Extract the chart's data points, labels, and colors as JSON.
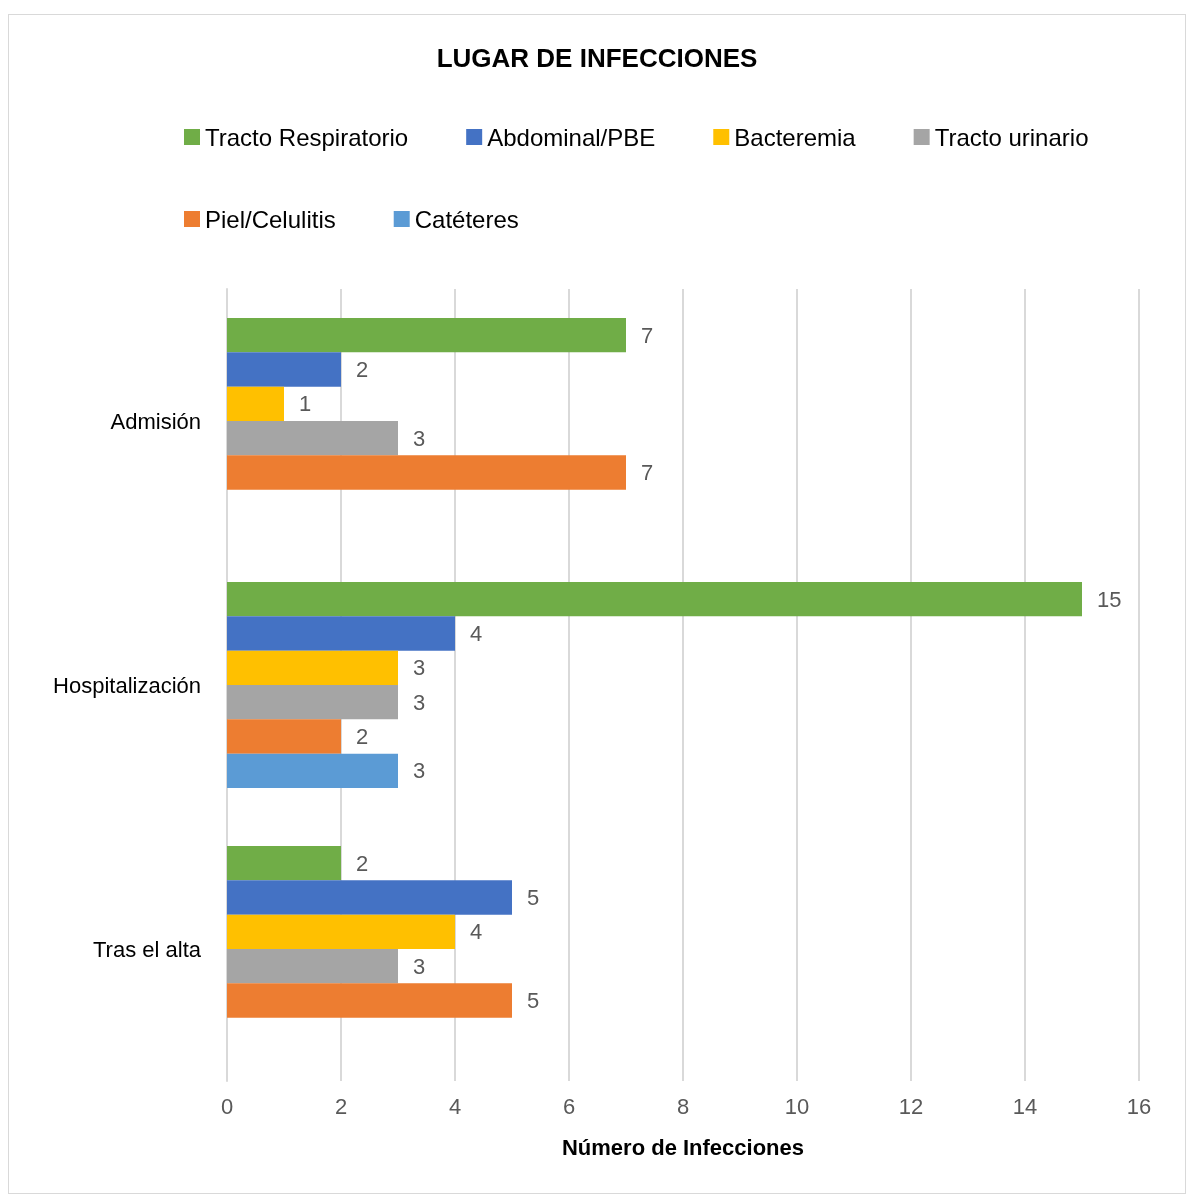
{
  "chart_data": {
    "type": "bar",
    "orientation": "horizontal",
    "title": "LUGAR DE INFECCIONES",
    "xlabel": "Número de Infecciones",
    "categories": [
      "Admisión",
      "Hospitalización",
      "Tras el alta"
    ],
    "series": [
      {
        "name": "Tracto Respiratorio",
        "color": "#70ad47",
        "values": [
          7,
          15,
          2
        ]
      },
      {
        "name": "Abdominal/PBE",
        "color": "#4472c4",
        "values": [
          2,
          4,
          5
        ]
      },
      {
        "name": "Bacteremia",
        "color": "#ffc000",
        "values": [
          1,
          3,
          4
        ]
      },
      {
        "name": "Tracto urinario",
        "color": "#a5a5a5",
        "values": [
          3,
          3,
          3
        ]
      },
      {
        "name": "Piel/Celulitis",
        "color": "#ed7d31",
        "values": [
          7,
          2,
          5
        ]
      },
      {
        "name": "Catéteres",
        "color": "#5b9bd5",
        "values": [
          null,
          3,
          null
        ]
      }
    ],
    "xlim": [
      0,
      16
    ],
    "xticks": [
      0,
      2,
      4,
      6,
      8,
      10,
      12,
      14,
      16
    ],
    "grid": "x",
    "legend": "top",
    "data_labels": true
  }
}
